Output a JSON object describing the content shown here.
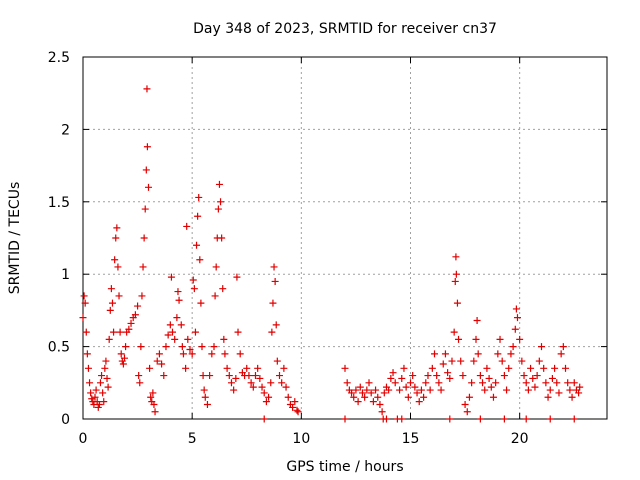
{
  "chart_data": {
    "type": "scatter",
    "title": "Day 348 of 2023, SRMTID for receiver cn37",
    "xlabel": "GPS time / hours",
    "ylabel": "SRMTID / TECUs",
    "xlim": [
      0,
      24
    ],
    "ylim": [
      0,
      2.5
    ],
    "xticks": [
      0,
      5,
      10,
      15,
      20
    ],
    "yticks": [
      0,
      0.5,
      1,
      1.5,
      2,
      2.5
    ],
    "xtick_labels": [
      "0",
      "5",
      "10",
      "15",
      "20"
    ],
    "ytick_labels": [
      "0",
      "0.5",
      "1",
      "1.5",
      "2",
      "2.5"
    ],
    "grid": true,
    "marker": "+",
    "color": "#e00000",
    "series": [
      {
        "name": "SRMTID",
        "points": [
          [
            0.0,
            0.7
          ],
          [
            0.05,
            0.85
          ],
          [
            0.1,
            0.8
          ],
          [
            0.15,
            0.6
          ],
          [
            0.2,
            0.45
          ],
          [
            0.25,
            0.35
          ],
          [
            0.3,
            0.25
          ],
          [
            0.35,
            0.18
          ],
          [
            0.4,
            0.14
          ],
          [
            0.45,
            0.12
          ],
          [
            0.5,
            0.1
          ],
          [
            0.55,
            0.15
          ],
          [
            0.6,
            0.2
          ],
          [
            0.65,
            0.12
          ],
          [
            0.7,
            0.08
          ],
          [
            0.75,
            0.1
          ],
          [
            0.8,
            0.25
          ],
          [
            0.85,
            0.3
          ],
          [
            0.9,
            0.18
          ],
          [
            0.95,
            0.12
          ],
          [
            1.0,
            0.35
          ],
          [
            1.05,
            0.4
          ],
          [
            1.1,
            0.28
          ],
          [
            1.15,
            0.22
          ],
          [
            1.2,
            0.55
          ],
          [
            1.25,
            0.75
          ],
          [
            1.3,
            0.9
          ],
          [
            1.35,
            0.8
          ],
          [
            1.4,
            0.6
          ],
          [
            1.45,
            1.1
          ],
          [
            1.5,
            1.25
          ],
          [
            1.55,
            1.32
          ],
          [
            1.6,
            1.05
          ],
          [
            1.65,
            0.85
          ],
          [
            1.7,
            0.6
          ],
          [
            1.75,
            0.45
          ],
          [
            1.8,
            0.4
          ],
          [
            1.85,
            0.38
          ],
          [
            1.9,
            0.42
          ],
          [
            1.95,
            0.5
          ],
          [
            2.0,
            0.6
          ],
          [
            2.1,
            0.62
          ],
          [
            2.2,
            0.66
          ],
          [
            2.3,
            0.7
          ],
          [
            2.4,
            0.72
          ],
          [
            2.5,
            0.78
          ],
          [
            2.55,
            0.3
          ],
          [
            2.6,
            0.25
          ],
          [
            2.65,
            0.5
          ],
          [
            2.7,
            0.85
          ],
          [
            2.75,
            1.05
          ],
          [
            2.8,
            1.25
          ],
          [
            2.85,
            1.45
          ],
          [
            2.9,
            1.72
          ],
          [
            2.93,
            2.28
          ],
          [
            2.95,
            1.88
          ],
          [
            3.0,
            1.6
          ],
          [
            3.05,
            0.35
          ],
          [
            3.1,
            0.15
          ],
          [
            3.15,
            0.12
          ],
          [
            3.2,
            0.18
          ],
          [
            3.25,
            0.1
          ],
          [
            3.3,
            0.05
          ],
          [
            3.4,
            0.4
          ],
          [
            3.5,
            0.45
          ],
          [
            3.6,
            0.38
          ],
          [
            3.7,
            0.3
          ],
          [
            3.8,
            0.5
          ],
          [
            3.9,
            0.58
          ],
          [
            4.0,
            0.65
          ],
          [
            4.05,
            0.98
          ],
          [
            4.1,
            0.6
          ],
          [
            4.2,
            0.55
          ],
          [
            4.3,
            0.7
          ],
          [
            4.35,
            0.88
          ],
          [
            4.4,
            0.82
          ],
          [
            4.5,
            0.65
          ],
          [
            4.55,
            0.5
          ],
          [
            4.6,
            0.45
          ],
          [
            4.7,
            0.35
          ],
          [
            4.75,
            1.33
          ],
          [
            4.8,
            0.55
          ],
          [
            4.9,
            0.48
          ],
          [
            5.0,
            0.45
          ],
          [
            5.05,
            0.96
          ],
          [
            5.1,
            0.9
          ],
          [
            5.15,
            0.6
          ],
          [
            5.2,
            1.2
          ],
          [
            5.25,
            1.4
          ],
          [
            5.3,
            1.53
          ],
          [
            5.35,
            1.1
          ],
          [
            5.4,
            0.8
          ],
          [
            5.45,
            0.5
          ],
          [
            5.5,
            0.3
          ],
          [
            5.55,
            0.2
          ],
          [
            5.6,
            0.15
          ],
          [
            5.7,
            0.1
          ],
          [
            5.8,
            0.3
          ],
          [
            5.9,
            0.45
          ],
          [
            6.0,
            0.5
          ],
          [
            6.05,
            0.85
          ],
          [
            6.1,
            1.05
          ],
          [
            6.15,
            1.25
          ],
          [
            6.2,
            1.45
          ],
          [
            6.25,
            1.62
          ],
          [
            6.3,
            1.5
          ],
          [
            6.35,
            1.25
          ],
          [
            6.4,
            0.9
          ],
          [
            6.45,
            0.55
          ],
          [
            6.5,
            0.45
          ],
          [
            6.6,
            0.35
          ],
          [
            6.7,
            0.3
          ],
          [
            6.8,
            0.25
          ],
          [
            6.9,
            0.2
          ],
          [
            7.0,
            0.28
          ],
          [
            7.05,
            0.98
          ],
          [
            7.1,
            0.6
          ],
          [
            7.2,
            0.45
          ],
          [
            7.3,
            0.32
          ],
          [
            7.4,
            0.3
          ],
          [
            7.5,
            0.35
          ],
          [
            7.6,
            0.3
          ],
          [
            7.7,
            0.25
          ],
          [
            7.8,
            0.22
          ],
          [
            7.9,
            0.3
          ],
          [
            8.0,
            0.35
          ],
          [
            8.1,
            0.28
          ],
          [
            8.2,
            0.22
          ],
          [
            8.3,
            0.18
          ],
          [
            8.4,
            0.12
          ],
          [
            8.5,
            0.15
          ],
          [
            8.6,
            0.25
          ],
          [
            8.65,
            0.6
          ],
          [
            8.7,
            0.8
          ],
          [
            8.75,
            1.05
          ],
          [
            8.8,
            0.95
          ],
          [
            8.85,
            0.65
          ],
          [
            8.9,
            0.4
          ],
          [
            9.0,
            0.3
          ],
          [
            9.1,
            0.25
          ],
          [
            9.2,
            0.35
          ],
          [
            9.3,
            0.22
          ],
          [
            9.4,
            0.15
          ],
          [
            9.5,
            0.1
          ],
          [
            9.6,
            0.08
          ],
          [
            9.7,
            0.12
          ],
          [
            9.8,
            0.06
          ],
          [
            9.85,
            0.05
          ],
          [
            8.3,
            0.0
          ],
          [
            12.0,
            0.0
          ],
          [
            12.0,
            0.35
          ],
          [
            12.1,
            0.25
          ],
          [
            12.2,
            0.2
          ],
          [
            12.3,
            0.18
          ],
          [
            12.4,
            0.15
          ],
          [
            12.5,
            0.2
          ],
          [
            12.6,
            0.12
          ],
          [
            12.7,
            0.22
          ],
          [
            12.8,
            0.18
          ],
          [
            12.9,
            0.15
          ],
          [
            13.0,
            0.2
          ],
          [
            13.1,
            0.25
          ],
          [
            13.2,
            0.18
          ],
          [
            13.3,
            0.12
          ],
          [
            13.4,
            0.2
          ],
          [
            13.5,
            0.15
          ],
          [
            13.6,
            0.1
          ],
          [
            13.7,
            0.05
          ],
          [
            13.75,
            0.0
          ],
          [
            13.8,
            0.18
          ],
          [
            13.9,
            0.22
          ],
          [
            14.0,
            0.2
          ],
          [
            14.1,
            0.28
          ],
          [
            14.2,
            0.32
          ],
          [
            14.3,
            0.25
          ],
          [
            14.4,
            0.0
          ],
          [
            14.5,
            0.2
          ],
          [
            14.6,
            0.28
          ],
          [
            14.7,
            0.35
          ],
          [
            14.8,
            0.22
          ],
          [
            14.9,
            0.15
          ],
          [
            15.0,
            0.25
          ],
          [
            15.1,
            0.3
          ],
          [
            15.2,
            0.22
          ],
          [
            15.3,
            0.18
          ],
          [
            15.4,
            0.12
          ],
          [
            15.5,
            0.2
          ],
          [
            15.6,
            0.15
          ],
          [
            15.7,
            0.25
          ],
          [
            15.8,
            0.3
          ],
          [
            15.9,
            0.2
          ],
          [
            16.0,
            0.35
          ],
          [
            16.1,
            0.45
          ],
          [
            16.2,
            0.3
          ],
          [
            16.3,
            0.25
          ],
          [
            16.4,
            0.2
          ],
          [
            16.5,
            0.38
          ],
          [
            16.6,
            0.45
          ],
          [
            16.7,
            0.32
          ],
          [
            16.8,
            0.28
          ],
          [
            16.9,
            0.4
          ],
          [
            17.0,
            0.6
          ],
          [
            17.05,
            0.95
          ],
          [
            17.08,
            1.12
          ],
          [
            17.1,
            1.0
          ],
          [
            17.15,
            0.8
          ],
          [
            17.2,
            0.55
          ],
          [
            17.3,
            0.4
          ],
          [
            17.4,
            0.3
          ],
          [
            17.5,
            0.1
          ],
          [
            17.6,
            0.05
          ],
          [
            17.7,
            0.15
          ],
          [
            17.8,
            0.25
          ],
          [
            17.9,
            0.4
          ],
          [
            18.0,
            0.55
          ],
          [
            18.05,
            0.68
          ],
          [
            18.1,
            0.45
          ],
          [
            18.2,
            0.3
          ],
          [
            18.3,
            0.25
          ],
          [
            18.4,
            0.2
          ],
          [
            18.5,
            0.35
          ],
          [
            18.6,
            0.28
          ],
          [
            18.7,
            0.22
          ],
          [
            18.8,
            0.15
          ],
          [
            18.9,
            0.25
          ],
          [
            19.0,
            0.45
          ],
          [
            19.1,
            0.55
          ],
          [
            19.2,
            0.4
          ],
          [
            19.3,
            0.3
          ],
          [
            19.4,
            0.2
          ],
          [
            19.5,
            0.35
          ],
          [
            19.6,
            0.45
          ],
          [
            19.7,
            0.5
          ],
          [
            19.8,
            0.62
          ],
          [
            19.85,
            0.76
          ],
          [
            19.9,
            0.7
          ],
          [
            20.0,
            0.55
          ],
          [
            20.1,
            0.4
          ],
          [
            20.2,
            0.3
          ],
          [
            20.3,
            0.25
          ],
          [
            20.4,
            0.2
          ],
          [
            20.5,
            0.35
          ],
          [
            20.6,
            0.28
          ],
          [
            20.7,
            0.22
          ],
          [
            20.8,
            0.3
          ],
          [
            20.9,
            0.4
          ],
          [
            21.0,
            0.5
          ],
          [
            21.1,
            0.35
          ],
          [
            21.2,
            0.25
          ],
          [
            21.3,
            0.15
          ],
          [
            21.4,
            0.2
          ],
          [
            21.5,
            0.28
          ],
          [
            21.6,
            0.35
          ],
          [
            21.7,
            0.25
          ],
          [
            21.8,
            0.18
          ],
          [
            21.9,
            0.45
          ],
          [
            22.0,
            0.5
          ],
          [
            22.1,
            0.35
          ],
          [
            22.2,
            0.25
          ],
          [
            22.3,
            0.2
          ],
          [
            22.4,
            0.15
          ],
          [
            22.5,
            0.25
          ],
          [
            22.6,
            0.2
          ],
          [
            22.7,
            0.18
          ],
          [
            22.75,
            0.22
          ],
          [
            22.5,
            0.0
          ],
          [
            21.4,
            0.0
          ],
          [
            20.3,
            0.0
          ],
          [
            19.3,
            0.0
          ],
          [
            18.2,
            0.0
          ],
          [
            16.8,
            0.0
          ],
          [
            14.6,
            0.0
          ],
          [
            13.9,
            0.0
          ]
        ]
      }
    ]
  }
}
